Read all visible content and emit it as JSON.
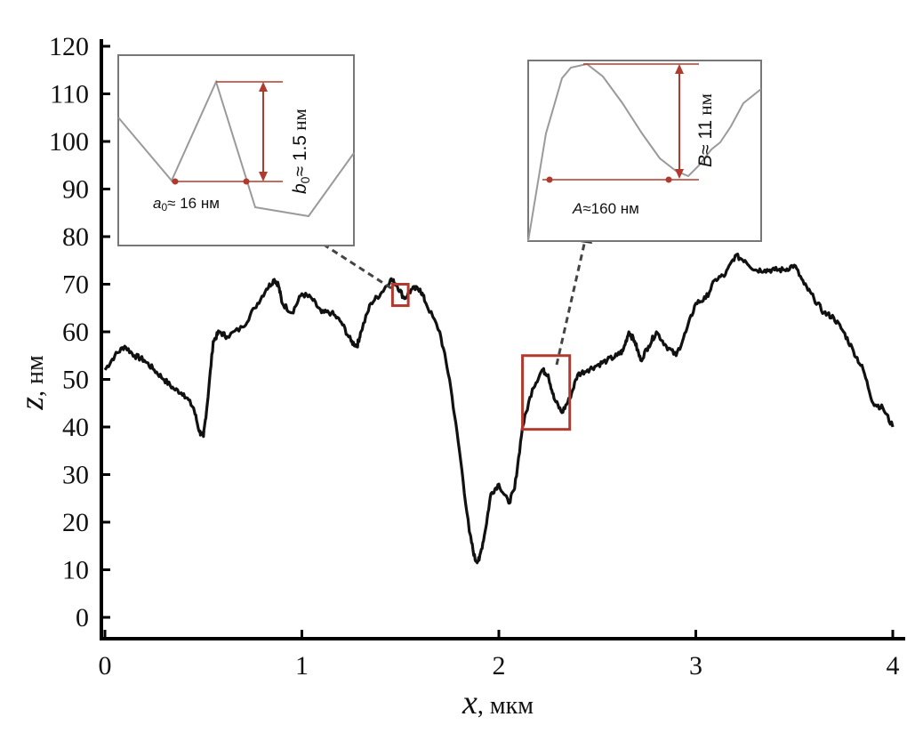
{
  "chart_data": {
    "type": "line",
    "title": "",
    "xlabel": {
      "var": "x",
      "unit": ", мкм"
    },
    "ylabel": {
      "var": "z",
      "unit": ", нм"
    },
    "xlim": [
      0,
      4
    ],
    "ylim": [
      0,
      120
    ],
    "xticks": [
      "0",
      "1",
      "2",
      "3",
      "4"
    ],
    "yticks": [
      "0",
      "10",
      "20",
      "30",
      "40",
      "50",
      "60",
      "70",
      "80",
      "90",
      "100",
      "110",
      "120"
    ],
    "grid": false,
    "series": [
      {
        "x": [
          0,
          0.05,
          0.1,
          0.15,
          0.2,
          0.25,
          0.3,
          0.35,
          0.4,
          0.45,
          0.48,
          0.5,
          0.52,
          0.55,
          0.58,
          0.62,
          0.7,
          0.76,
          0.82,
          0.86,
          0.88,
          0.9,
          0.95,
          1.0,
          1.05,
          1.1,
          1.15,
          1.2,
          1.25,
          1.28,
          1.3,
          1.35,
          1.4,
          1.45,
          1.48,
          1.52,
          1.56,
          1.6,
          1.63,
          1.7,
          1.75,
          1.8,
          1.85,
          1.88,
          1.9,
          1.93,
          1.96,
          2.0,
          2.05,
          2.08,
          2.12,
          2.17,
          2.22,
          2.25,
          2.28,
          2.32,
          2.36,
          2.4,
          2.45,
          2.5,
          2.55,
          2.6,
          2.63,
          2.66,
          2.69,
          2.72,
          2.76,
          2.8,
          2.85,
          2.9,
          2.95,
          3.0,
          3.05,
          3.1,
          3.15,
          3.2,
          3.25,
          3.3,
          3.35,
          3.4,
          3.45,
          3.5,
          3.55,
          3.6,
          3.65,
          3.7,
          3.75,
          3.8,
          3.85,
          3.9,
          3.95,
          4.0
        ],
        "values": [
          52,
          55,
          57,
          55,
          54,
          52,
          50,
          48,
          47,
          44,
          39,
          38,
          45,
          58,
          60,
          59,
          61,
          65,
          69,
          71,
          70,
          66,
          64,
          68,
          67,
          64,
          64,
          62,
          58,
          57,
          60,
          66,
          68,
          71,
          70,
          67,
          69,
          69,
          66,
          60,
          50,
          35,
          18,
          12,
          12,
          18,
          26,
          28,
          24,
          27,
          40,
          48,
          52,
          51,
          46,
          43,
          46,
          51,
          52,
          53,
          54,
          55,
          56,
          60,
          58,
          54,
          57,
          60,
          57,
          55,
          60,
          66,
          67,
          71,
          72,
          76,
          75,
          73,
          73,
          73,
          73,
          74,
          70,
          67,
          64,
          63,
          60,
          56,
          52,
          45,
          44,
          40
        ]
      }
    ],
    "markers": [
      {
        "x0": 1.46,
        "x1": 1.54,
        "y0": 65.5,
        "y1": 70,
        "color": "#b03a2e"
      },
      {
        "x0": 2.12,
        "x1": 2.36,
        "y0": 39.5,
        "y1": 55,
        "color": "#b03a2e"
      }
    ],
    "insets": [
      {
        "name": "inset-left",
        "a_label": "a",
        "a_sub": "0",
        "a_value": "≈ 16",
        "a_unit": " нм",
        "b_label": "b",
        "b_sub": "0",
        "b_value": "≈ 1.5",
        "b_unit": " нм"
      },
      {
        "name": "inset-right",
        "a_label": "A",
        "a_value": "≈160",
        "a_unit": " нм",
        "b_label": "B",
        "b_value": "≈ 11",
        "b_unit": " нм"
      }
    ],
    "colors": {
      "curve": "#111111",
      "marker": "#b03a2e",
      "inset_border": "#777777",
      "inset_curve": "#9a9a9a",
      "arrow": "#444444"
    }
  }
}
